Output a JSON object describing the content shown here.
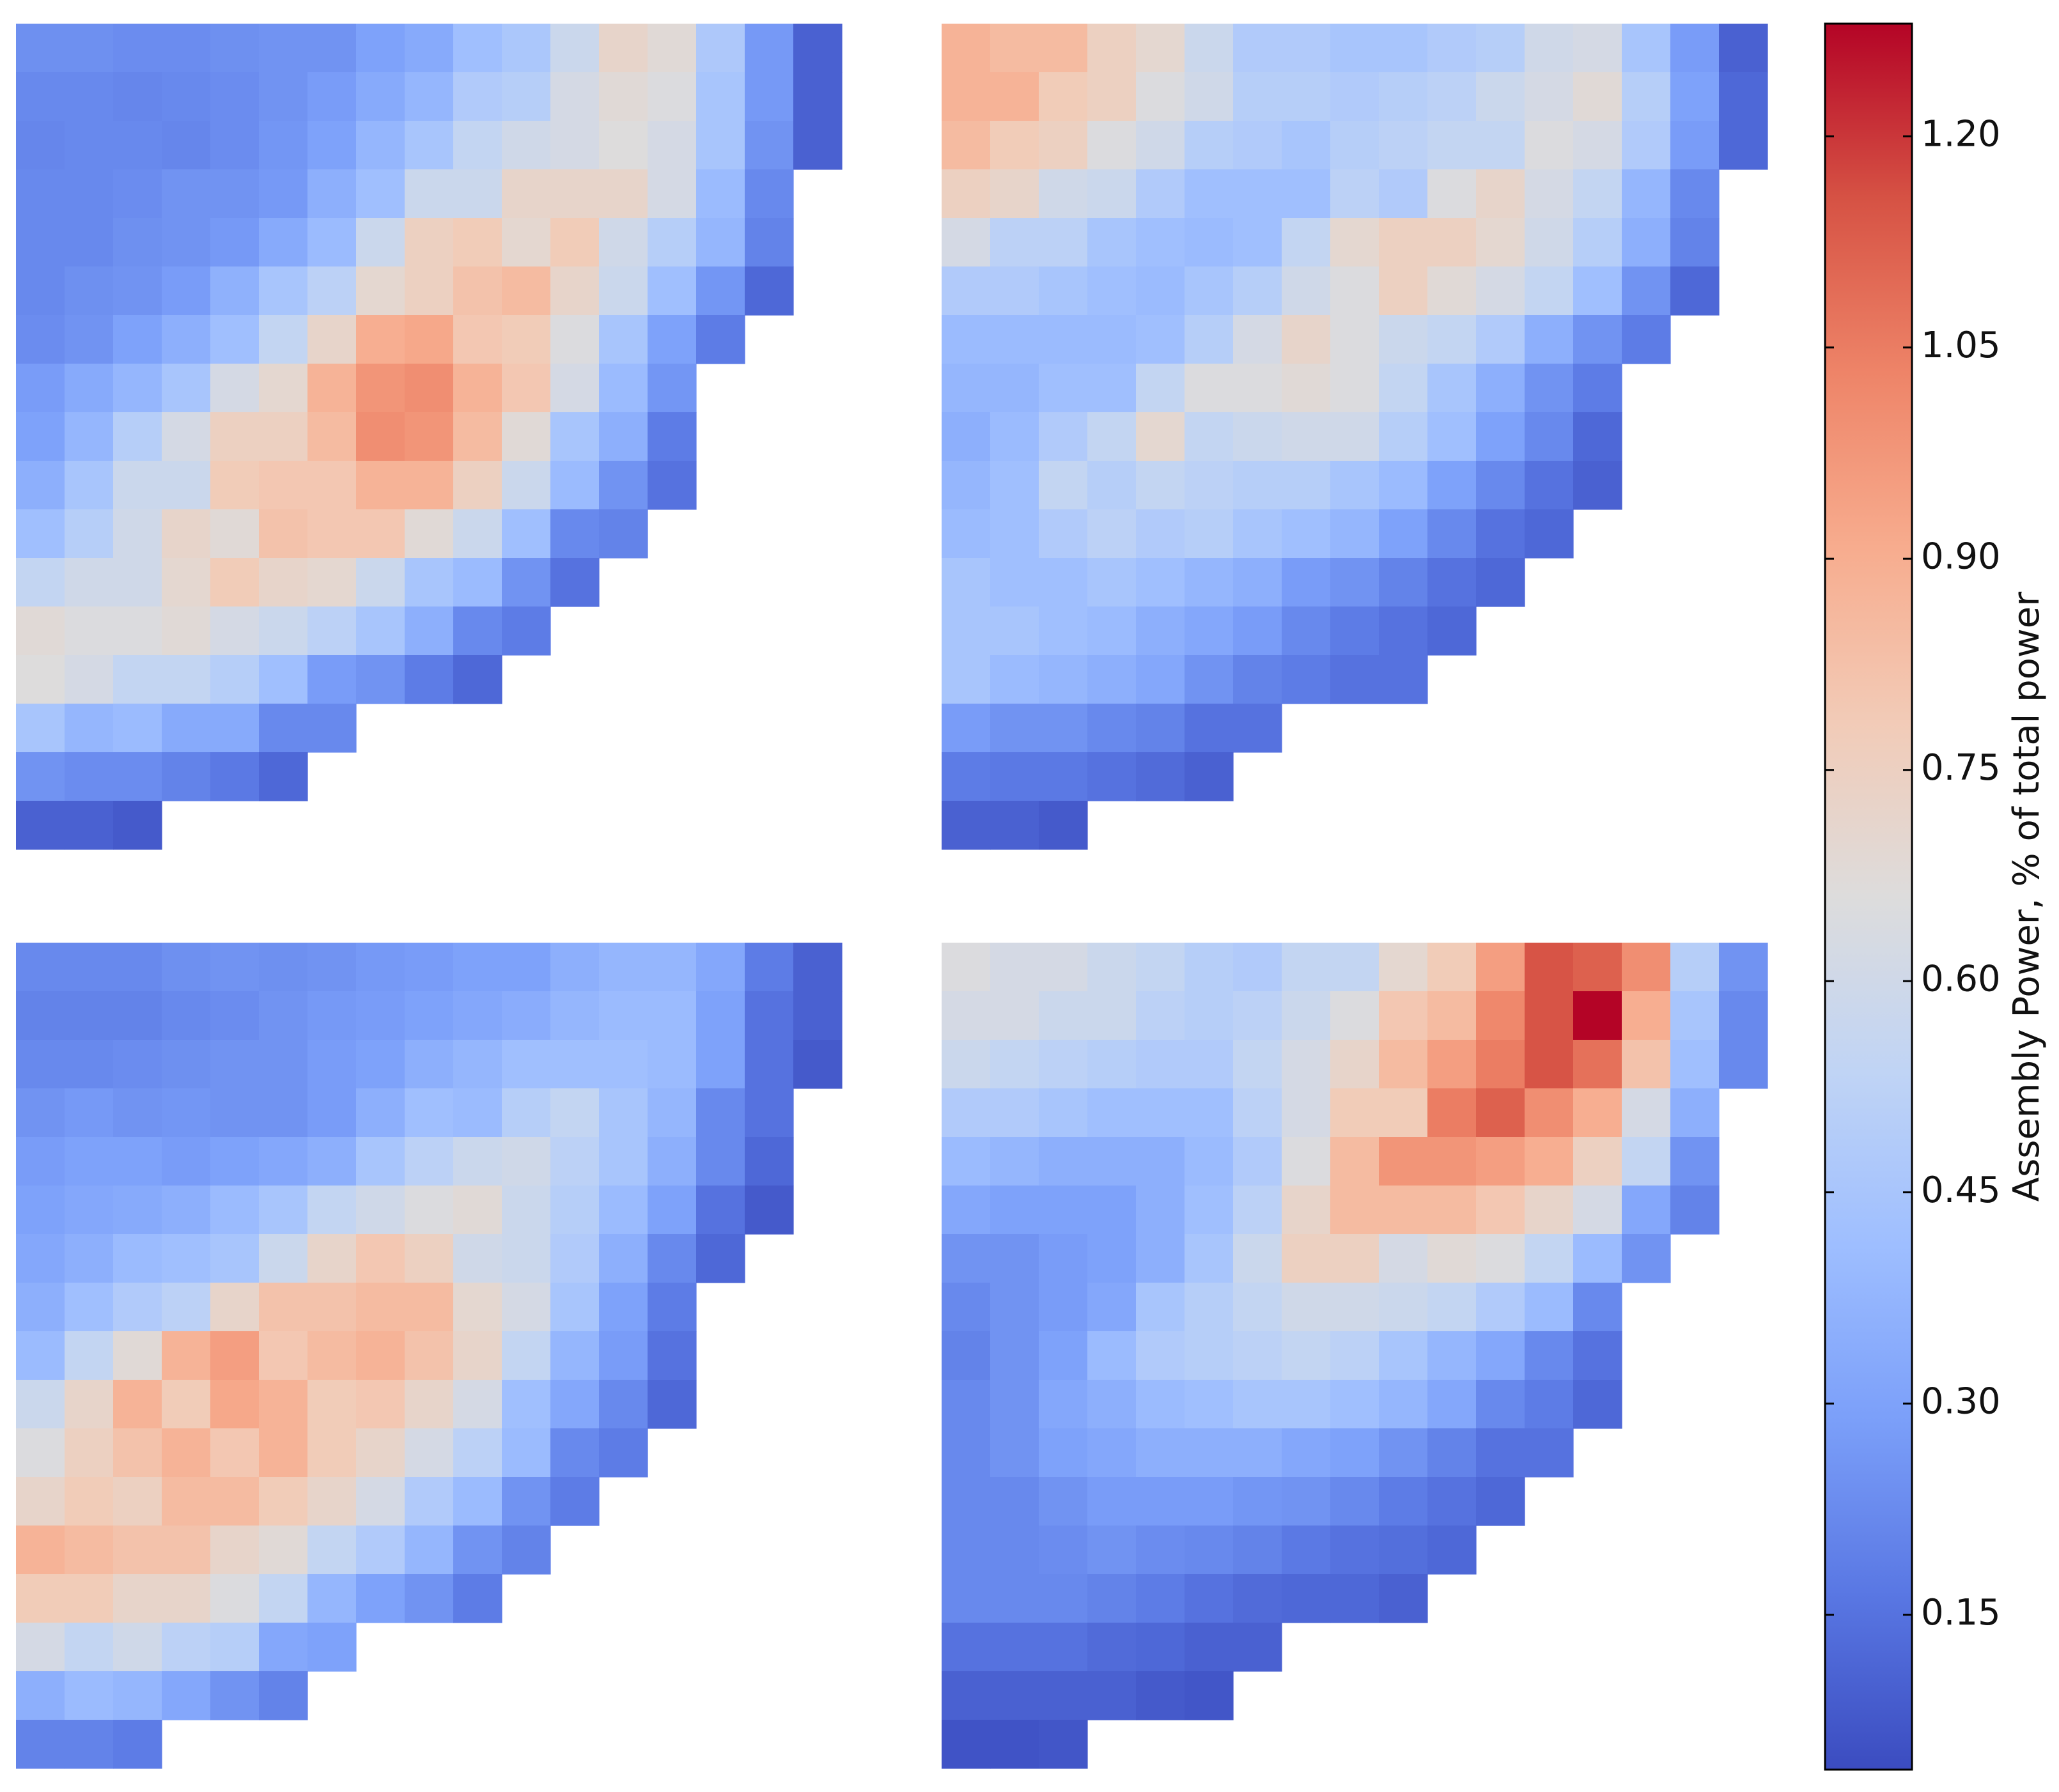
{
  "chart_data": [
    {
      "type": "heatmap",
      "z": [
        [
          0.24,
          0.24,
          0.23,
          0.23,
          0.24,
          0.25,
          0.25,
          0.3,
          0.33,
          0.42,
          0.46,
          0.58,
          0.72,
          0.68,
          0.47,
          0.27,
          0.1
        ],
        [
          0.22,
          0.22,
          0.21,
          0.22,
          0.23,
          0.25,
          0.28,
          0.33,
          0.38,
          0.48,
          0.5,
          0.62,
          0.68,
          0.65,
          0.45,
          0.27,
          0.1
        ],
        [
          0.21,
          0.22,
          0.22,
          0.21,
          0.23,
          0.26,
          0.3,
          0.38,
          0.45,
          0.55,
          0.6,
          0.62,
          0.66,
          0.62,
          0.45,
          0.25,
          0.1
        ],
        [
          0.22,
          0.22,
          0.23,
          0.25,
          0.25,
          0.27,
          0.35,
          0.42,
          0.58,
          0.58,
          0.72,
          0.72,
          0.72,
          0.62,
          0.4,
          0.22
        ],
        [
          0.22,
          0.22,
          0.24,
          0.25,
          0.27,
          0.33,
          0.4,
          0.58,
          0.75,
          0.78,
          0.7,
          0.78,
          0.6,
          0.5,
          0.38,
          0.2
        ],
        [
          0.22,
          0.24,
          0.25,
          0.28,
          0.36,
          0.45,
          0.52,
          0.7,
          0.75,
          0.82,
          0.85,
          0.72,
          0.58,
          0.42,
          0.26,
          0.12
        ],
        [
          0.23,
          0.25,
          0.3,
          0.35,
          0.42,
          0.55,
          0.72,
          0.9,
          0.92,
          0.8,
          0.78,
          0.65,
          0.45,
          0.3,
          0.18
        ],
        [
          0.28,
          0.33,
          0.38,
          0.45,
          0.62,
          0.7,
          0.88,
          0.98,
          1.0,
          0.88,
          0.8,
          0.62,
          0.4,
          0.26
        ],
        [
          0.3,
          0.38,
          0.5,
          0.62,
          0.75,
          0.75,
          0.85,
          1.0,
          0.98,
          0.85,
          0.68,
          0.45,
          0.35,
          0.18
        ],
        [
          0.35,
          0.45,
          0.58,
          0.58,
          0.78,
          0.8,
          0.8,
          0.88,
          0.88,
          0.75,
          0.58,
          0.4,
          0.25,
          0.15
        ],
        [
          0.42,
          0.5,
          0.6,
          0.72,
          0.68,
          0.82,
          0.8,
          0.8,
          0.68,
          0.58,
          0.42,
          0.22,
          0.2
        ],
        [
          0.55,
          0.6,
          0.6,
          0.7,
          0.78,
          0.72,
          0.7,
          0.58,
          0.45,
          0.4,
          0.25,
          0.15
        ],
        [
          0.68,
          0.65,
          0.65,
          0.68,
          0.62,
          0.58,
          0.52,
          0.45,
          0.35,
          0.22,
          0.18
        ],
        [
          0.66,
          0.62,
          0.55,
          0.55,
          0.5,
          0.42,
          0.28,
          0.25,
          0.18,
          0.12
        ],
        [
          0.45,
          0.38,
          0.4,
          0.33,
          0.33,
          0.22,
          0.22
        ],
        [
          0.25,
          0.23,
          0.23,
          0.2,
          0.17,
          0.12
        ],
        [
          0.1,
          0.1,
          0.08
        ]
      ]
    },
    {
      "type": "heatmap",
      "z": [
        [
          0.88,
          0.85,
          0.85,
          0.75,
          0.7,
          0.58,
          0.48,
          0.48,
          0.45,
          0.45,
          0.48,
          0.5,
          0.6,
          0.62,
          0.45,
          0.28,
          0.1
        ],
        [
          0.88,
          0.88,
          0.78,
          0.75,
          0.65,
          0.6,
          0.5,
          0.5,
          0.48,
          0.5,
          0.52,
          0.58,
          0.62,
          0.68,
          0.5,
          0.3,
          0.12
        ],
        [
          0.85,
          0.78,
          0.75,
          0.65,
          0.6,
          0.5,
          0.48,
          0.45,
          0.5,
          0.52,
          0.55,
          0.55,
          0.65,
          0.62,
          0.48,
          0.28,
          0.12
        ],
        [
          0.75,
          0.72,
          0.6,
          0.58,
          0.48,
          0.42,
          0.42,
          0.42,
          0.52,
          0.48,
          0.65,
          0.72,
          0.62,
          0.55,
          0.38,
          0.22
        ],
        [
          0.62,
          0.52,
          0.52,
          0.45,
          0.42,
          0.4,
          0.42,
          0.55,
          0.7,
          0.75,
          0.75,
          0.7,
          0.6,
          0.5,
          0.35,
          0.2
        ],
        [
          0.48,
          0.48,
          0.45,
          0.42,
          0.4,
          0.45,
          0.5,
          0.6,
          0.65,
          0.75,
          0.68,
          0.62,
          0.55,
          0.42,
          0.25,
          0.12
        ],
        [
          0.4,
          0.4,
          0.4,
          0.4,
          0.42,
          0.5,
          0.62,
          0.72,
          0.65,
          0.58,
          0.55,
          0.48,
          0.35,
          0.25,
          0.18
        ],
        [
          0.38,
          0.38,
          0.42,
          0.42,
          0.55,
          0.65,
          0.65,
          0.68,
          0.65,
          0.55,
          0.45,
          0.35,
          0.25,
          0.18
        ],
        [
          0.35,
          0.4,
          0.48,
          0.55,
          0.7,
          0.55,
          0.58,
          0.6,
          0.6,
          0.5,
          0.42,
          0.3,
          0.22,
          0.12
        ],
        [
          0.38,
          0.42,
          0.55,
          0.5,
          0.55,
          0.52,
          0.5,
          0.5,
          0.45,
          0.4,
          0.3,
          0.22,
          0.15,
          0.1
        ],
        [
          0.4,
          0.42,
          0.48,
          0.52,
          0.48,
          0.5,
          0.45,
          0.42,
          0.38,
          0.3,
          0.22,
          0.15,
          0.12
        ],
        [
          0.45,
          0.42,
          0.42,
          0.45,
          0.42,
          0.38,
          0.35,
          0.28,
          0.25,
          0.2,
          0.15,
          0.12
        ],
        [
          0.45,
          0.45,
          0.42,
          0.4,
          0.35,
          0.32,
          0.28,
          0.22,
          0.18,
          0.15,
          0.12
        ],
        [
          0.45,
          0.4,
          0.38,
          0.35,
          0.32,
          0.25,
          0.2,
          0.18,
          0.15,
          0.15
        ],
        [
          0.28,
          0.25,
          0.25,
          0.22,
          0.2,
          0.15,
          0.15
        ],
        [
          0.18,
          0.17,
          0.17,
          0.15,
          0.13,
          0.1
        ],
        [
          0.1,
          0.1,
          0.08
        ]
      ]
    },
    {
      "type": "heatmap",
      "z": [
        [
          0.22,
          0.22,
          0.22,
          0.24,
          0.25,
          0.24,
          0.25,
          0.27,
          0.28,
          0.3,
          0.3,
          0.35,
          0.38,
          0.38,
          0.32,
          0.18,
          0.1
        ],
        [
          0.2,
          0.2,
          0.2,
          0.22,
          0.23,
          0.25,
          0.27,
          0.28,
          0.3,
          0.32,
          0.34,
          0.38,
          0.4,
          0.4,
          0.3,
          0.15,
          0.1
        ],
        [
          0.22,
          0.22,
          0.23,
          0.24,
          0.25,
          0.25,
          0.28,
          0.3,
          0.35,
          0.38,
          0.42,
          0.42,
          0.42,
          0.4,
          0.3,
          0.15,
          0.08
        ],
        [
          0.25,
          0.27,
          0.25,
          0.26,
          0.25,
          0.25,
          0.28,
          0.35,
          0.42,
          0.4,
          0.5,
          0.55,
          0.45,
          0.38,
          0.22,
          0.15
        ],
        [
          0.28,
          0.3,
          0.3,
          0.28,
          0.3,
          0.32,
          0.35,
          0.45,
          0.52,
          0.58,
          0.6,
          0.52,
          0.45,
          0.35,
          0.22,
          0.12
        ],
        [
          0.3,
          0.32,
          0.33,
          0.35,
          0.4,
          0.45,
          0.55,
          0.6,
          0.65,
          0.68,
          0.58,
          0.5,
          0.4,
          0.3,
          0.15,
          0.08
        ],
        [
          0.32,
          0.35,
          0.4,
          0.42,
          0.45,
          0.58,
          0.72,
          0.8,
          0.75,
          0.6,
          0.58,
          0.48,
          0.35,
          0.22,
          0.12
        ],
        [
          0.35,
          0.42,
          0.48,
          0.52,
          0.72,
          0.82,
          0.82,
          0.85,
          0.85,
          0.7,
          0.62,
          0.45,
          0.3,
          0.18
        ],
        [
          0.4,
          0.55,
          0.68,
          0.88,
          0.95,
          0.8,
          0.85,
          0.88,
          0.82,
          0.72,
          0.55,
          0.38,
          0.28,
          0.15
        ],
        [
          0.58,
          0.72,
          0.88,
          0.78,
          0.92,
          0.88,
          0.78,
          0.8,
          0.72,
          0.62,
          0.42,
          0.32,
          0.22,
          0.12
        ],
        [
          0.65,
          0.75,
          0.82,
          0.88,
          0.8,
          0.88,
          0.78,
          0.72,
          0.62,
          0.52,
          0.4,
          0.22,
          0.18
        ],
        [
          0.72,
          0.78,
          0.75,
          0.85,
          0.85,
          0.78,
          0.72,
          0.62,
          0.48,
          0.4,
          0.25,
          0.18
        ],
        [
          0.88,
          0.85,
          0.82,
          0.82,
          0.72,
          0.68,
          0.55,
          0.48,
          0.38,
          0.25,
          0.2
        ],
        [
          0.78,
          0.78,
          0.72,
          0.72,
          0.65,
          0.55,
          0.38,
          0.3,
          0.25,
          0.18
        ],
        [
          0.62,
          0.55,
          0.6,
          0.52,
          0.5,
          0.32,
          0.3
        ],
        [
          0.35,
          0.4,
          0.38,
          0.32,
          0.25,
          0.2
        ],
        [
          0.2,
          0.2,
          0.18
        ]
      ]
    },
    {
      "type": "heatmap",
      "z": [
        [
          0.65,
          0.62,
          0.62,
          0.58,
          0.55,
          0.5,
          0.48,
          0.55,
          0.55,
          0.7,
          0.78,
          0.95,
          1.15,
          1.12,
          1.0,
          0.5,
          0.25
        ],
        [
          0.62,
          0.62,
          0.58,
          0.58,
          0.52,
          0.5,
          0.52,
          0.58,
          0.65,
          0.8,
          0.85,
          1.02,
          1.15,
          1.28,
          0.9,
          0.45,
          0.22
        ],
        [
          0.58,
          0.55,
          0.52,
          0.5,
          0.48,
          0.48,
          0.55,
          0.62,
          0.72,
          0.85,
          0.95,
          1.05,
          1.15,
          1.08,
          0.82,
          0.42,
          0.22
        ],
        [
          0.48,
          0.48,
          0.45,
          0.42,
          0.42,
          0.42,
          0.52,
          0.62,
          0.78,
          0.78,
          1.05,
          1.12,
          1.0,
          0.9,
          0.62,
          0.35
        ],
        [
          0.4,
          0.38,
          0.35,
          0.35,
          0.35,
          0.4,
          0.48,
          0.65,
          0.85,
          0.98,
          0.98,
          0.95,
          0.9,
          0.75,
          0.55,
          0.25
        ],
        [
          0.32,
          0.3,
          0.3,
          0.3,
          0.35,
          0.42,
          0.52,
          0.72,
          0.85,
          0.85,
          0.85,
          0.8,
          0.72,
          0.62,
          0.32,
          0.2
        ],
        [
          0.25,
          0.25,
          0.28,
          0.3,
          0.35,
          0.45,
          0.58,
          0.75,
          0.75,
          0.62,
          0.68,
          0.65,
          0.55,
          0.4,
          0.25
        ],
        [
          0.22,
          0.25,
          0.28,
          0.32,
          0.45,
          0.5,
          0.55,
          0.6,
          0.6,
          0.58,
          0.55,
          0.48,
          0.4,
          0.22
        ],
        [
          0.2,
          0.25,
          0.3,
          0.4,
          0.48,
          0.5,
          0.52,
          0.55,
          0.52,
          0.45,
          0.38,
          0.32,
          0.22,
          0.15
        ],
        [
          0.22,
          0.25,
          0.32,
          0.35,
          0.4,
          0.42,
          0.45,
          0.45,
          0.42,
          0.38,
          0.32,
          0.22,
          0.18,
          0.12
        ],
        [
          0.22,
          0.25,
          0.3,
          0.32,
          0.35,
          0.35,
          0.35,
          0.32,
          0.3,
          0.25,
          0.2,
          0.15,
          0.15
        ],
        [
          0.22,
          0.22,
          0.25,
          0.28,
          0.28,
          0.28,
          0.26,
          0.25,
          0.22,
          0.18,
          0.15,
          0.12
        ],
        [
          0.22,
          0.22,
          0.23,
          0.25,
          0.23,
          0.22,
          0.2,
          0.17,
          0.15,
          0.14,
          0.12
        ],
        [
          0.22,
          0.22,
          0.22,
          0.2,
          0.18,
          0.15,
          0.13,
          0.12,
          0.12,
          0.1
        ],
        [
          0.15,
          0.15,
          0.15,
          0.13,
          0.12,
          0.1,
          0.1
        ],
        [
          0.1,
          0.1,
          0.1,
          0.1,
          0.08,
          0.07
        ],
        [
          0.06,
          0.06,
          0.07
        ]
      ]
    }
  ],
  "colorbar": {
    "label": "Assembly Power, % of total power",
    "colormap": "coolwarm",
    "zlim": [
      0.04,
      1.28
    ],
    "ticks": [
      0.15,
      {
        "value": 0.3,
        "label": "0.30"
      },
      0.45,
      {
        "value": 0.6,
        "label": "0.60"
      },
      0.75,
      {
        "value": 0.9,
        "label": "0.90"
      },
      1.05,
      {
        "value": 1.2,
        "label": "1.20"
      }
    ]
  }
}
